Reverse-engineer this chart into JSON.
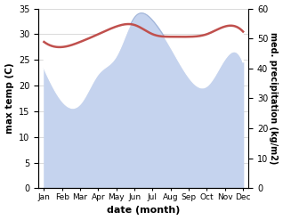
{
  "months": [
    "Jan",
    "Feb",
    "Mar",
    "Apr",
    "May",
    "Jun",
    "Jul",
    "Aug",
    "Sep",
    "Oct",
    "Nov",
    "Dec"
  ],
  "x": [
    0,
    1,
    2,
    3,
    4,
    5,
    6,
    7,
    8,
    9,
    10,
    11
  ],
  "temperature": [
    28.5,
    27.5,
    28.5,
    30.0,
    31.5,
    31.8,
    30.0,
    29.5,
    29.5,
    30.0,
    31.5,
    30.5
  ],
  "precipitation": [
    40,
    29,
    28,
    38,
    44,
    57,
    56,
    47,
    37,
    34,
    43,
    42
  ],
  "temp_color": "#c0504d",
  "precip_fill_color": "#c5d3ee",
  "precip_line_color": "#a0b4d8",
  "temp_ylim": [
    0,
    35
  ],
  "precip_ylim": [
    0,
    60
  ],
  "temp_yticks": [
    0,
    5,
    10,
    15,
    20,
    25,
    30,
    35
  ],
  "precip_yticks": [
    0,
    10,
    20,
    30,
    40,
    50,
    60
  ],
  "xlabel": "date (month)",
  "ylabel_left": "max temp (C)",
  "ylabel_right": "med. precipitation (kg/m2)",
  "fig_width": 3.18,
  "fig_height": 2.47,
  "dpi": 100,
  "bg_color": "#f0f0f0"
}
